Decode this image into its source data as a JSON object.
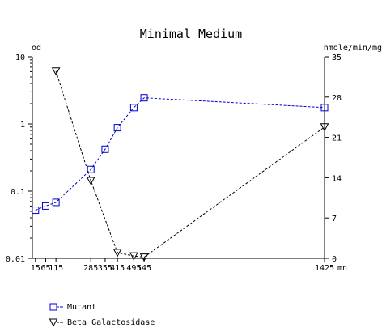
{
  "chart_data": {
    "type": "line",
    "title": "Minimal Medium",
    "xlabel": "mn",
    "ylabel_left": "od",
    "ylabel_right": "nmole/min/mg",
    "xlim": [
      0,
      1425
    ],
    "ylim_left": [
      0.01,
      10
    ],
    "y_left_scale": "log",
    "ylim_right": [
      0,
      35
    ],
    "x_ticks": [
      15,
      65,
      115,
      285,
      355,
      415,
      495,
      545,
      1425
    ],
    "x_tick_labels": [
      "15",
      "65",
      "115",
      "285",
      "355",
      "415",
      "495",
      "545",
      "1425"
    ],
    "y_left_ticks": [
      "10",
      "1",
      "0.1",
      "0.01"
    ],
    "y_right_ticks": [
      "35",
      "28",
      "21",
      "14",
      "7",
      "0"
    ],
    "grid": false,
    "legend_position": "bottom-left",
    "series": [
      {
        "name": "Mutant",
        "axis": "left",
        "color": "#0000cc",
        "marker": "square",
        "x": [
          15,
          65,
          115,
          285,
          355,
          415,
          495,
          545,
          1425
        ],
        "y": [
          0.052,
          0.06,
          0.068,
          0.21,
          0.42,
          0.88,
          1.75,
          2.45,
          1.75
        ]
      },
      {
        "name": "Beta Galactosidase",
        "axis": "right",
        "color": "#000000",
        "marker": "triangle-down",
        "x": [
          115,
          285,
          415,
          495,
          545,
          1425
        ],
        "y": [
          32.5,
          13.5,
          1.0,
          0.4,
          0.2,
          22.8
        ]
      }
    ]
  }
}
